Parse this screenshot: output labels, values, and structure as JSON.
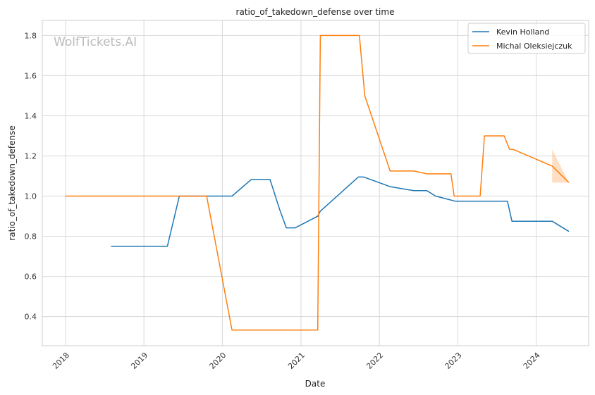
{
  "chart_data": {
    "type": "line",
    "title": "ratio_of_takedown_defense over time",
    "xlabel": "Date",
    "ylabel": "ratio_of_takedown_defense",
    "watermark": "WolfTickets.AI",
    "xlim": [
      "2017-09-15",
      "2024-09-01"
    ],
    "ylim": [
      0.255,
      1.875
    ],
    "x_ticks": [
      {
        "date": "2018-01-01",
        "label": "2018"
      },
      {
        "date": "2019-01-01",
        "label": "2019"
      },
      {
        "date": "2020-01-01",
        "label": "2020"
      },
      {
        "date": "2021-01-01",
        "label": "2021"
      },
      {
        "date": "2022-01-01",
        "label": "2022"
      },
      {
        "date": "2023-01-01",
        "label": "2023"
      },
      {
        "date": "2024-01-01",
        "label": "2024"
      }
    ],
    "y_ticks": [
      0.4,
      0.6,
      0.8,
      1.0,
      1.2,
      1.4,
      1.6,
      1.8
    ],
    "y_tick_labels": [
      "0.4",
      "0.6",
      "0.8",
      "1.0",
      "1.2",
      "1.4",
      "1.6",
      "1.8"
    ],
    "grid": true,
    "legend_position": "top-right",
    "series": [
      {
        "name": "Kevin Holland",
        "color": "#1f77b4",
        "points": [
          [
            "2018-08-01",
            0.75
          ],
          [
            "2019-04-20",
            0.75
          ],
          [
            "2019-06-15",
            1.0
          ],
          [
            "2020-02-15",
            1.0
          ],
          [
            "2020-05-15",
            1.083
          ],
          [
            "2020-08-10",
            1.083
          ],
          [
            "2020-09-25",
            0.929
          ],
          [
            "2020-10-25",
            0.842
          ],
          [
            "2020-12-05",
            0.842
          ],
          [
            "2021-03-20",
            0.9
          ],
          [
            "2021-04-01",
            0.925
          ],
          [
            "2021-09-25",
            1.095
          ],
          [
            "2021-10-20",
            1.095
          ],
          [
            "2022-02-20",
            1.047
          ],
          [
            "2022-06-10",
            1.027
          ],
          [
            "2022-08-10",
            1.027
          ],
          [
            "2022-09-20",
            1.0
          ],
          [
            "2022-12-20",
            0.975
          ],
          [
            "2023-08-20",
            0.975
          ],
          [
            "2023-09-10",
            0.875
          ],
          [
            "2024-03-15",
            0.875
          ],
          [
            "2024-06-01",
            0.824
          ]
        ]
      },
      {
        "name": "Michal Oleksiejczuk",
        "color": "#ff7f0e",
        "points": [
          [
            "2017-12-30",
            1.0
          ],
          [
            "2019-10-20",
            1.0
          ],
          [
            "2020-02-15",
            0.333
          ],
          [
            "2021-03-20",
            0.333
          ],
          [
            "2021-04-01",
            1.8
          ],
          [
            "2021-09-30",
            1.8
          ],
          [
            "2021-10-25",
            1.5
          ],
          [
            "2022-02-20",
            1.125
          ],
          [
            "2022-06-10",
            1.125
          ],
          [
            "2022-08-10",
            1.111
          ],
          [
            "2022-11-30",
            1.111
          ],
          [
            "2022-12-15",
            1.0
          ],
          [
            "2023-04-15",
            1.0
          ],
          [
            "2023-05-05",
            1.3
          ],
          [
            "2023-08-05",
            1.3
          ],
          [
            "2023-08-30",
            1.233
          ],
          [
            "2023-09-15",
            1.233
          ],
          [
            "2024-03-15",
            1.15
          ],
          [
            "2024-06-01",
            1.067
          ]
        ],
        "band": {
          "x": [
            "2024-03-15",
            "2024-06-01"
          ],
          "upper": [
            1.233,
            1.067
          ],
          "lower": [
            1.067,
            1.067
          ]
        }
      }
    ]
  }
}
